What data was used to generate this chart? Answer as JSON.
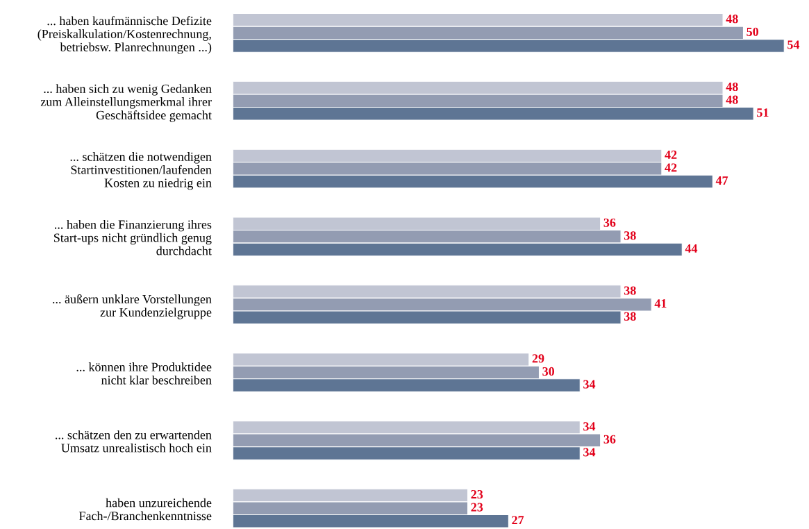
{
  "chart_data": {
    "type": "bar",
    "orientation": "horizontal",
    "tick_labels": "y",
    "data_labels": true,
    "categories": [
      "... haben kaufmännische Defizite\n(Preiskalkulation/Kostenrechnung,\nbetriebsw. Planrechnungen ...)",
      "... haben sich zu wenig Gedanken\nzum Alleinstellungsmerkmal ihrer\nGeschäftsidee gemacht",
      "... schätzen die notwendigen\nStartinvestitionen/laufenden\nKosten zu niedrig ein",
      "... haben die Finanzierung ihres\nStart-ups nicht gründlich genug\ndurchdacht",
      "... äußern unklare Vorstellungen\nzur Kundenzielgruppe",
      "... können ihre Produktidee\nnicht klar beschreiben",
      "... schätzen den zu erwartenden\nUmsatz unrealistisch hoch ein",
      "haben unzureichende\nFach-/Branchenkenntnisse"
    ],
    "series": [
      {
        "color": "#c1c5d3",
        "values": [
          48,
          48,
          42,
          36,
          38,
          29,
          34,
          23
        ]
      },
      {
        "color": "#939cb2",
        "values": [
          50,
          48,
          42,
          38,
          41,
          30,
          36,
          23
        ]
      },
      {
        "color": "#5e7594",
        "values": [
          54,
          51,
          47,
          44,
          38,
          34,
          34,
          27
        ]
      }
    ]
  }
}
